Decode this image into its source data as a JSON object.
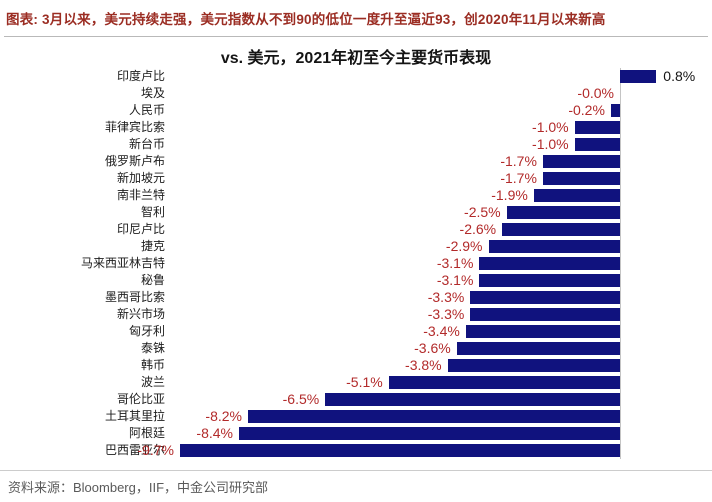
{
  "header": {
    "text": "图表: 3月以来，美元持续走强，美元指数从不到90的低位一度升至逼近93，创2020年11月以来新高"
  },
  "chart_data": {
    "type": "bar",
    "orientation": "horizontal",
    "title": "vs. 美元，2021年初至今主要货币表现",
    "categories": [
      "印度卢比",
      "埃及",
      "人民币",
      "菲律宾比索",
      "新台币",
      "俄罗斯卢布",
      "新加坡元",
      "南非兰特",
      "智利",
      "印尼卢比",
      "捷克",
      "马来西亚林吉特",
      "秘鲁",
      "墨西哥比索",
      "新兴市场",
      "匈牙利",
      "泰铢",
      "韩币",
      "波兰",
      "哥伦比亚",
      "土耳其里拉",
      "阿根廷",
      "巴西雷亚尔"
    ],
    "values": [
      0.8,
      -0.0,
      -0.2,
      -1.0,
      -1.0,
      -1.7,
      -1.7,
      -1.9,
      -2.5,
      -2.6,
      -2.9,
      -3.1,
      -3.1,
      -3.3,
      -3.3,
      -3.4,
      -3.6,
      -3.8,
      -5.1,
      -6.5,
      -8.2,
      -8.4,
      -9.7
    ],
    "value_labels": [
      "0.8%",
      "-0.0%",
      "-0.2%",
      "-1.0%",
      "-1.0%",
      "-1.7%",
      "-1.7%",
      "-1.9%",
      "-2.5%",
      "-2.6%",
      "-2.9%",
      "-3.1%",
      "-3.1%",
      "-3.3%",
      "-3.3%",
      "-3.4%",
      "-3.6%",
      "-3.8%",
      "-5.1%",
      "-6.5%",
      "-8.2%",
      "-8.4%",
      "-9.7%"
    ],
    "unit": "%",
    "xlim": [
      -10.0,
      0.8
    ],
    "grid": false,
    "zero_axis_line": true,
    "bar_color": "#10127e",
    "negative_label_color": "#b22a2a",
    "positive_label_color": "#141414",
    "legend": null
  },
  "footer": {
    "text": "资料来源：Bloomberg，IIF，中金公司研究部"
  }
}
